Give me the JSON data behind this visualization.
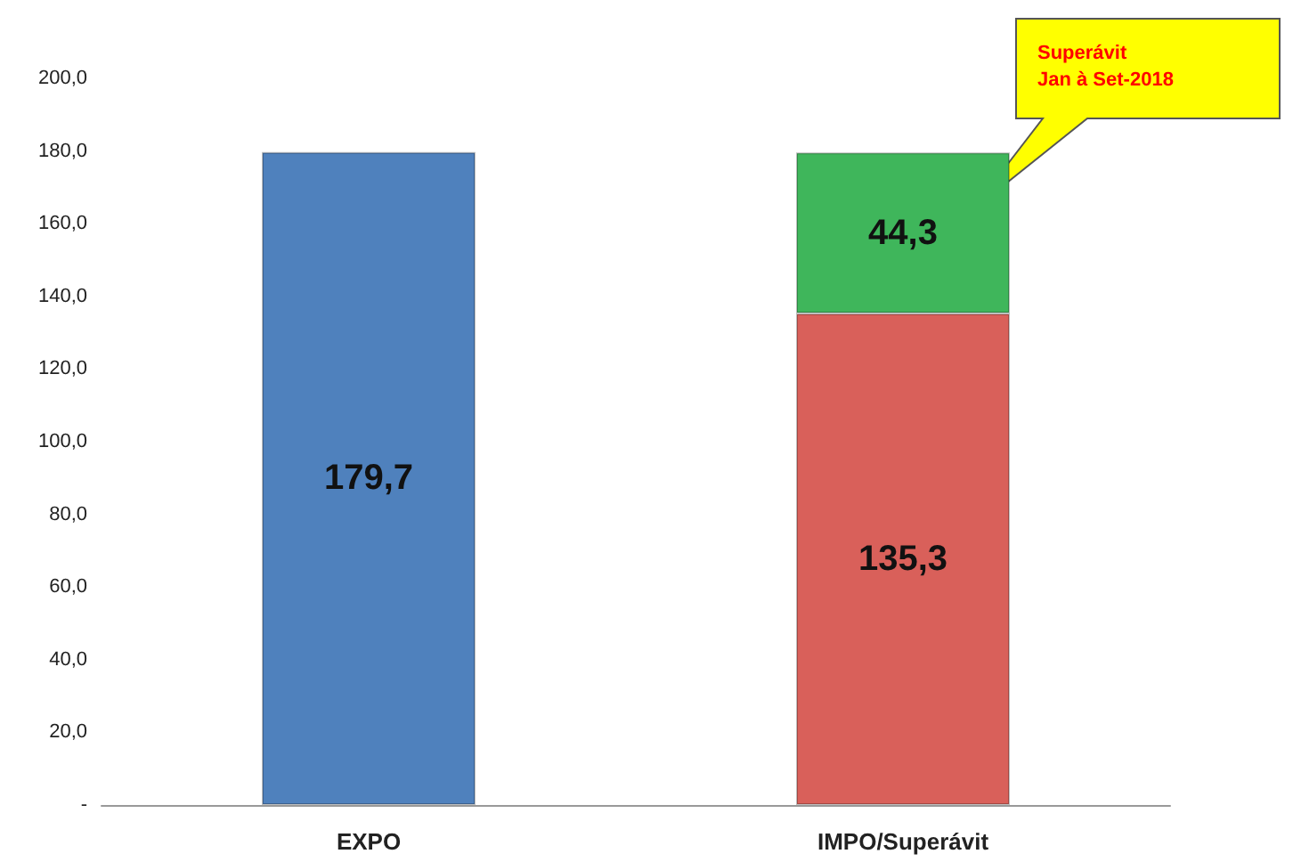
{
  "chart_data": {
    "type": "bar",
    "stacked": true,
    "categories": [
      "EXPO",
      "IMPO/Superávit"
    ],
    "series": [
      {
        "colors": [
          "#4f81bd",
          "#d9605a"
        ],
        "values": [
          179.7,
          135.3
        ],
        "value_labels": [
          "179,7",
          "135,3"
        ]
      },
      {
        "color": "#3fb65b",
        "values": [
          null,
          44.3
        ],
        "value_labels": [
          null,
          "44,3"
        ]
      }
    ],
    "ylim": [
      0,
      200
    ],
    "yticks": [
      {
        "value": 0,
        "label": "-"
      },
      {
        "value": 20,
        "label": "20,0"
      },
      {
        "value": 40,
        "label": "40,0"
      },
      {
        "value": 60,
        "label": "60,0"
      },
      {
        "value": 80,
        "label": "80,0"
      },
      {
        "value": 100,
        "label": "100,0"
      },
      {
        "value": 120,
        "label": "120,0"
      },
      {
        "value": 140,
        "label": "140,0"
      },
      {
        "value": 160,
        "label": "160,0"
      },
      {
        "value": 180,
        "label": "180,0"
      },
      {
        "value": 200,
        "label": "200,0"
      }
    ],
    "grid": false,
    "annotations": [
      "Superávit\nJan à Set-2018"
    ]
  }
}
